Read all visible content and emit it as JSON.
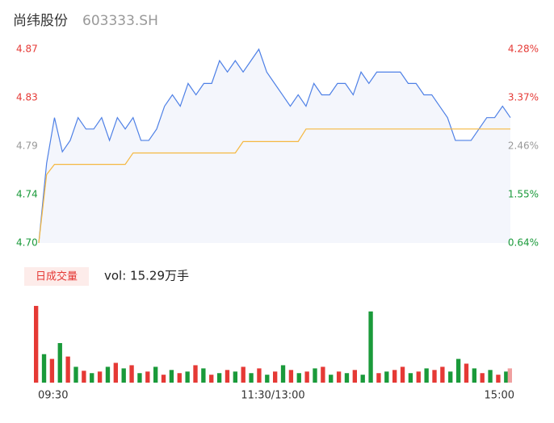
{
  "chart_data": [
    {
      "type": "line",
      "title": "尚纬股份",
      "subtitle": "603333.SH",
      "x": [
        0,
        4,
        8,
        12,
        16,
        20,
        24,
        28,
        32,
        36,
        40,
        44,
        48,
        52,
        56,
        60,
        64,
        68,
        72,
        76,
        80,
        84,
        88,
        92,
        96,
        100,
        104,
        108,
        112,
        116,
        120,
        124,
        128,
        132,
        136,
        140,
        144,
        148,
        152,
        156,
        160,
        164,
        168,
        172,
        176,
        180,
        184,
        188,
        192,
        196,
        200,
        204,
        208,
        212,
        216,
        220,
        224,
        228,
        232,
        236,
        240
      ],
      "xlim": [
        0,
        240
      ],
      "series": [
        {
          "color": "#4e80e6",
          "values": [
            4.7,
            4.77,
            4.81,
            4.78,
            4.79,
            4.81,
            4.8,
            4.8,
            4.81,
            4.79,
            4.81,
            4.8,
            4.81,
            4.79,
            4.79,
            4.8,
            4.82,
            4.83,
            4.82,
            4.84,
            4.83,
            4.84,
            4.84,
            4.86,
            4.85,
            4.86,
            4.85,
            4.86,
            4.87,
            4.85,
            4.84,
            4.83,
            4.82,
            4.83,
            4.82,
            4.84,
            4.83,
            4.83,
            4.84,
            4.84,
            4.83,
            4.85,
            4.84,
            4.85,
            4.85,
            4.85,
            4.85,
            4.84,
            4.84,
            4.83,
            4.83,
            4.82,
            4.81,
            4.79,
            4.79,
            4.79,
            4.8,
            4.81,
            4.81,
            4.82,
            4.81
          ]
        },
        {
          "color": "#f5b841",
          "values": [
            4.7,
            4.76,
            4.769,
            4.769,
            4.769,
            4.769,
            4.769,
            4.769,
            4.769,
            4.769,
            4.769,
            4.769,
            4.779,
            4.779,
            4.779,
            4.779,
            4.779,
            4.779,
            4.779,
            4.779,
            4.779,
            4.779,
            4.779,
            4.779,
            4.779,
            4.779,
            4.789,
            4.789,
            4.789,
            4.789,
            4.789,
            4.789,
            4.789,
            4.789,
            4.8,
            4.8,
            4.8,
            4.8,
            4.8,
            4.8,
            4.8,
            4.8,
            4.8,
            4.8,
            4.8,
            4.8,
            4.8,
            4.8,
            4.8,
            4.8,
            4.8,
            4.8,
            4.8,
            4.8,
            4.8,
            4.8,
            4.8,
            4.8,
            4.8,
            4.8,
            4.8
          ]
        }
      ],
      "ylim": [
        4.7,
        4.87
      ],
      "yticks": [
        {
          "value": 4.87,
          "label": "4.87"
        },
        {
          "value": 4.8275,
          "label": "4.83"
        },
        {
          "value": 4.785,
          "label": "4.79"
        },
        {
          "value": 4.7425,
          "label": "4.74"
        },
        {
          "value": 4.7,
          "label": "4.70"
        }
      ],
      "ytick_colors": [
        "#e53935",
        "#e53935",
        "#999999",
        "#1a9a3a",
        "#1a9a3a"
      ],
      "y2lim": [
        0.64,
        4.28
      ],
      "y2ticks": [
        {
          "value": 4.28,
          "label": "4.28%"
        },
        {
          "value": 3.37,
          "label": "3.37%"
        },
        {
          "value": 2.46,
          "label": "2.46%"
        },
        {
          "value": 1.55,
          "label": "1.55%"
        },
        {
          "value": 0.64,
          "label": "0.64%"
        }
      ],
      "y2tick_colors": [
        "#e53935",
        "#e53935",
        "#999999",
        "#1a9a3a",
        "#1a9a3a"
      ],
      "fill": "#f4f6fc"
    },
    {
      "type": "bar",
      "title": "日成交量",
      "label": "vol: 15.29万手",
      "x": [
        0,
        4,
        8,
        12,
        16,
        20,
        24,
        28,
        32,
        36,
        40,
        44,
        48,
        52,
        56,
        60,
        64,
        68,
        72,
        76,
        80,
        84,
        88,
        92,
        96,
        100,
        104,
        108,
        112,
        116,
        120,
        124,
        128,
        132,
        136,
        140,
        144,
        148,
        152,
        156,
        160,
        164,
        168,
        172,
        176,
        180,
        184,
        188,
        192,
        196,
        200,
        204,
        208,
        212,
        216,
        220,
        224,
        228,
        232,
        236,
        240
      ],
      "xlim": [
        0,
        240
      ],
      "xticks": [
        {
          "value": 0,
          "label": "09:30"
        },
        {
          "value": 120,
          "label": "11:30/13:00"
        },
        {
          "value": 240,
          "label": "15:00"
        }
      ],
      "values": [
        97,
        36,
        30,
        50,
        33,
        20,
        15,
        12,
        14,
        20,
        25,
        18,
        22,
        12,
        14,
        20,
        10,
        16,
        12,
        14,
        22,
        18,
        10,
        12,
        16,
        14,
        20,
        12,
        18,
        10,
        14,
        22,
        16,
        12,
        14,
        18,
        20,
        10,
        14,
        12,
        16,
        10,
        90,
        12,
        14,
        16,
        20,
        12,
        14,
        18,
        16,
        20,
        14,
        30,
        24,
        18,
        12,
        16,
        10,
        14,
        18
      ],
      "colors": [
        "#e53935",
        "#1a9a3a",
        "#e53935",
        "#1a9a3a",
        "#e53935",
        "#1a9a3a",
        "#e53935",
        "#1a9a3a",
        "#e53935",
        "#1a9a3a",
        "#e53935",
        "#1a9a3a",
        "#e53935",
        "#1a9a3a",
        "#e53935",
        "#1a9a3a",
        "#e53935",
        "#1a9a3a",
        "#e53935",
        "#1a9a3a",
        "#e53935",
        "#1a9a3a",
        "#e53935",
        "#1a9a3a",
        "#e53935",
        "#1a9a3a",
        "#e53935",
        "#1a9a3a",
        "#e53935",
        "#1a9a3a",
        "#e53935",
        "#1a9a3a",
        "#e53935",
        "#1a9a3a",
        "#e53935",
        "#1a9a3a",
        "#e53935",
        "#1a9a3a",
        "#e53935",
        "#1a9a3a",
        "#e53935",
        "#1a9a3a",
        "#1a9a3a",
        "#e53935",
        "#1a9a3a",
        "#e53935",
        "#e53935",
        "#1a9a3a",
        "#e53935",
        "#1a9a3a",
        "#e53935",
        "#e53935",
        "#1a9a3a",
        "#1a9a3a",
        "#e53935",
        "#1a9a3a",
        "#e53935",
        "#1a9a3a",
        "#e53935",
        "#1a9a3a",
        "#f0a0a0"
      ],
      "ylim": [
        0,
        100
      ]
    }
  ]
}
